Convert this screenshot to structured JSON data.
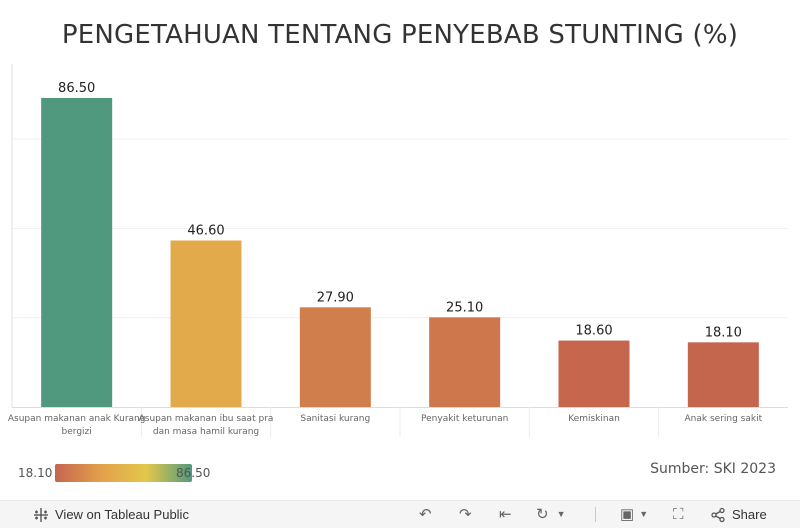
{
  "title": "PENGETAHUAN TENTANG PENYEBAB STUNTING (%)",
  "chart_data": {
    "type": "bar",
    "categories": [
      [
        "Asupan makanan anak Kurang",
        "bergizi"
      ],
      [
        "Asupan makanan ibu saat pra",
        "dan masa hamil kurang"
      ],
      [
        "Sanitasi kurang"
      ],
      [
        "Penyakit keturunan"
      ],
      [
        "Kemiskinan"
      ],
      [
        "Anak sering sakit"
      ]
    ],
    "values": [
      86.5,
      46.6,
      27.9,
      25.1,
      18.6,
      18.1
    ],
    "value_labels": [
      "86.50",
      "46.60",
      "27.90",
      "25.10",
      "18.60",
      "18.10"
    ],
    "ylim": [
      0,
      96
    ],
    "grid": true,
    "color_scale": {
      "min": 18.1,
      "max": 86.5,
      "min_label": "18.10",
      "max_label": "86.50",
      "colors": [
        "#c4654d",
        "#e3a04c",
        "#e3c74a",
        "#50997f"
      ]
    }
  },
  "source_label": "Sumber: SKI 2023",
  "toolbar": {
    "view_label": "View on Tableau Public",
    "share_label": "Share",
    "icons": [
      "tableau-logo-icon",
      "undo-icon",
      "redo-icon",
      "revert-icon",
      "refresh-icon",
      "pause-icon",
      "download-icon",
      "fullscreen-icon",
      "share-icon"
    ]
  }
}
